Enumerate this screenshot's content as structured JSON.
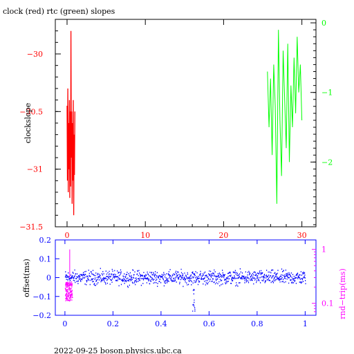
{
  "colors": {
    "clock": "#ff0000",
    "rtc": "#00ff00",
    "offset": "#0000ff",
    "roundtrip": "#ff00ff",
    "axis": "#000000"
  },
  "chart_data": [
    {
      "type": "line",
      "title": "clock (red) rtc (green) slopes",
      "ylabel": "clockslope",
      "xlim": [
        -1.5,
        31.8
      ],
      "x_ticks": [
        0,
        10,
        20,
        30
      ],
      "y_left": {
        "lim": [
          -31.5,
          -29.7
        ],
        "ticks": [
          -30,
          -30.5,
          -31,
          -31.5
        ],
        "tick_labels": [
          "−30",
          "−30.5",
          "−31",
          "−31.5"
        ]
      },
      "y_right": {
        "lim": [
          -2.93,
          0.05
        ],
        "ticks": [
          0,
          -1,
          -2
        ],
        "tick_labels": [
          "0",
          "−1",
          "−2"
        ]
      },
      "series": [
        {
          "axis": "left",
          "x": [
            0.0,
            0.05,
            0.1,
            0.15,
            0.2,
            0.25,
            0.3,
            0.35,
            0.4,
            0.45,
            0.5,
            0.55,
            0.6,
            0.65,
            0.7,
            0.75,
            0.8,
            0.85,
            0.9,
            0.95,
            1.0
          ],
          "y": [
            -30.45,
            -31.1,
            -30.3,
            -31.2,
            -30.6,
            -31.0,
            -30.4,
            -31.25,
            -30.5,
            -31.15,
            -29.8,
            -30.9,
            -30.5,
            -31.3,
            -30.6,
            -31.1,
            -30.4,
            -31.4,
            -30.7,
            -31.05,
            -30.5
          ]
        },
        {
          "axis": "right",
          "x": [
            25.6,
            25.8,
            26.0,
            26.2,
            26.4,
            26.6,
            26.8,
            27.0,
            27.2,
            27.4,
            27.6,
            27.8,
            28.0,
            28.2,
            28.4,
            28.6,
            28.8,
            29.0,
            29.2,
            29.4,
            29.6,
            29.8,
            30.0
          ],
          "y": [
            -0.7,
            -1.5,
            -0.8,
            -1.9,
            -0.6,
            -1.2,
            -2.6,
            -0.1,
            -1.4,
            -2.2,
            -0.4,
            -1.1,
            -1.8,
            -0.3,
            -2.0,
            -0.9,
            -1.5,
            -0.5,
            -1.3,
            -0.2,
            -1.0,
            -0.6,
            -1.4
          ]
        }
      ]
    },
    {
      "type": "scatter",
      "ylabel": "offset(ms)",
      "y2label": "rnd−trip(ms)",
      "xlim": [
        -0.04,
        1.045
      ],
      "x_ticks": [
        0,
        0.2,
        0.4,
        0.6,
        0.8,
        1
      ],
      "x_tick_labels": [
        "0",
        "0.2",
        "0.4",
        "0.6",
        "0.8",
        "1"
      ],
      "y_left": {
        "lim": [
          -0.2,
          0.2
        ],
        "ticks": [
          0.2,
          0.1,
          0,
          -0.1,
          -0.2
        ],
        "tick_labels": [
          "0.2",
          "0.1",
          "0",
          "−0.1",
          "−0.2"
        ]
      },
      "y_right": {
        "scale": "log",
        "lim": [
          0.06,
          1.5
        ],
        "ticks": [
          1,
          0.1
        ],
        "tick_labels": [
          "1",
          "0.1"
        ]
      },
      "series": [
        {
          "axis": "left",
          "baseline": 0,
          "spread": 0.03,
          "points": 1000
        },
        {
          "axis": "right",
          "range_x": [
            0,
            0.03
          ],
          "range_y": [
            0.11,
            0.25
          ],
          "spike_max": 1.0
        }
      ]
    }
  ],
  "footer": "2022-09-25  boson.physics.ubc.ca"
}
